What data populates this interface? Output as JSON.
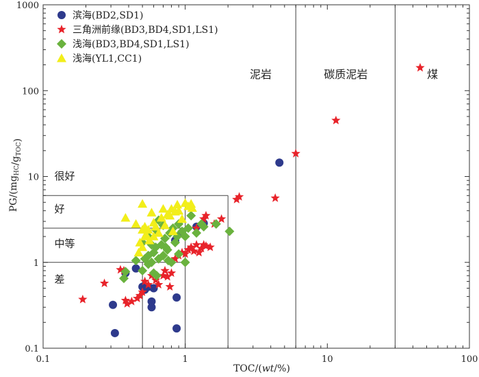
{
  "chart_data": {
    "type": "scatter",
    "x_scale": "log",
    "y_scale": "log",
    "xlim": [
      0.1,
      100
    ],
    "ylim": [
      0.1,
      1000
    ],
    "xlabel": "TOC/(wt/%)",
    "ylabel": "PG/(mg_HC/g_TOC)",
    "x_ticks": [
      "0.1",
      "1",
      "10",
      "100"
    ],
    "y_ticks": [
      "0.1",
      "1",
      "10",
      "100",
      "1000"
    ],
    "legend_position": "top-left",
    "regions": [
      {
        "label": "泥岩"
      },
      {
        "label": "碳质泥岩"
      },
      {
        "label": "煤"
      },
      {
        "label": "很好"
      },
      {
        "label": "好"
      },
      {
        "label": "中等"
      },
      {
        "label": "差"
      }
    ],
    "boundary_lines": {
      "x_verticals_full": [
        6,
        30
      ],
      "x_verticals_partial": [
        0.5,
        1,
        2
      ],
      "y_horizontals": [
        1,
        2.5,
        6
      ]
    },
    "series": [
      {
        "name": "滨海(BD2,SD1)",
        "marker": "circle",
        "color": "#2e3a8c",
        "points": [
          [
            0.31,
            0.32
          ],
          [
            0.32,
            0.15
          ],
          [
            0.38,
            0.75
          ],
          [
            0.45,
            0.85
          ],
          [
            0.5,
            0.52
          ],
          [
            0.52,
            0.48
          ],
          [
            0.55,
            0.52
          ],
          [
            0.58,
            0.35
          ],
          [
            0.58,
            0.3
          ],
          [
            0.6,
            0.5
          ],
          [
            0.87,
            0.39
          ],
          [
            0.87,
            0.17
          ],
          [
            0.85,
            1.8
          ],
          [
            0.95,
            2.2
          ],
          [
            1.2,
            2.6
          ],
          [
            1.35,
            2.85
          ],
          [
            4.6,
            14.5
          ]
        ]
      },
      {
        "name": "三角洲前缘(BD3,BD4,SD1,LS1)",
        "marker": "star",
        "color": "#e8232a",
        "points": [
          [
            0.19,
            0.37
          ],
          [
            0.27,
            0.57
          ],
          [
            0.35,
            0.82
          ],
          [
            0.37,
            0.8
          ],
          [
            0.38,
            0.36
          ],
          [
            0.39,
            0.33
          ],
          [
            0.42,
            0.35
          ],
          [
            0.46,
            0.38
          ],
          [
            0.48,
            0.41
          ],
          [
            0.5,
            0.45
          ],
          [
            0.52,
            0.6
          ],
          [
            0.55,
            0.55
          ],
          [
            0.58,
            0.7
          ],
          [
            0.62,
            0.62
          ],
          [
            0.65,
            0.55
          ],
          [
            0.7,
            0.7
          ],
          [
            0.72,
            0.8
          ],
          [
            0.75,
            0.68
          ],
          [
            0.8,
            0.75
          ],
          [
            0.78,
            0.52
          ],
          [
            0.85,
            1.1
          ],
          [
            0.9,
            1.2
          ],
          [
            0.95,
            1.3
          ],
          [
            1.0,
            1.25
          ],
          [
            1.05,
            1.4
          ],
          [
            1.1,
            1.5
          ],
          [
            1.15,
            1.35
          ],
          [
            1.2,
            1.6
          ],
          [
            1.25,
            1.3
          ],
          [
            1.3,
            1.45
          ],
          [
            1.35,
            1.6
          ],
          [
            1.4,
            1.55
          ],
          [
            1.5,
            1.5
          ],
          [
            1.2,
            2.5
          ],
          [
            1.35,
            3.2
          ],
          [
            1.4,
            3.5
          ],
          [
            1.6,
            2.8
          ],
          [
            1.8,
            3.2
          ],
          [
            2.3,
            5.4
          ],
          [
            2.4,
            5.8
          ],
          [
            4.3,
            5.6
          ],
          [
            6.0,
            18.5
          ],
          [
            11.5,
            45
          ],
          [
            45,
            185
          ]
        ]
      },
      {
        "name": "浅海(BD3,BD4,SD1,LS1)",
        "marker": "diamond",
        "color": "#6ab23e",
        "points": [
          [
            0.37,
            0.65
          ],
          [
            0.38,
            0.78
          ],
          [
            0.45,
            1.05
          ],
          [
            0.5,
            0.8
          ],
          [
            0.52,
            1.1
          ],
          [
            0.55,
            0.95
          ],
          [
            0.55,
            1.2
          ],
          [
            0.58,
            1.0
          ],
          [
            0.6,
            1.3
          ],
          [
            0.6,
            0.75
          ],
          [
            0.62,
            1.5
          ],
          [
            0.65,
            1.1
          ],
          [
            0.68,
            1.6
          ],
          [
            0.7,
            1.2
          ],
          [
            0.72,
            1.9
          ],
          [
            0.75,
            1.4
          ],
          [
            0.78,
            2.2
          ],
          [
            0.8,
            1.0
          ],
          [
            0.82,
            2.5
          ],
          [
            0.85,
            1.7
          ],
          [
            0.88,
            2.0
          ],
          [
            0.9,
            2.8
          ],
          [
            0.95,
            2.3
          ],
          [
            1.0,
            2.0
          ],
          [
            1.0,
            1.0
          ],
          [
            1.05,
            2.5
          ],
          [
            1.1,
            3.5
          ],
          [
            1.2,
            2.2
          ],
          [
            1.3,
            2.8
          ],
          [
            1.35,
            2.6
          ],
          [
            1.65,
            2.8
          ],
          [
            2.05,
            2.3
          ],
          [
            0.5,
            1.7
          ],
          [
            0.55,
            2.0
          ],
          [
            0.62,
            2.4
          ],
          [
            0.65,
            3.1
          ],
          [
            0.7,
            2.7
          ],
          [
            0.73,
            1.5
          ],
          [
            0.76,
            1.05
          ],
          [
            0.9,
            1.25
          ],
          [
            0.63,
            0.7
          ],
          [
            0.58,
            1.6
          ]
        ]
      },
      {
        "name": "浅海(YL1,CC1)",
        "marker": "triangle",
        "color": "#f2ee1a",
        "points": [
          [
            0.38,
            3.3
          ],
          [
            0.45,
            2.8
          ],
          [
            0.48,
            1.7
          ],
          [
            0.5,
            4.8
          ],
          [
            0.5,
            2.4
          ],
          [
            0.52,
            2.6
          ],
          [
            0.53,
            2.1
          ],
          [
            0.55,
            2.4
          ],
          [
            0.56,
            1.8
          ],
          [
            0.58,
            3.8
          ],
          [
            0.6,
            2.9
          ],
          [
            0.62,
            2.6
          ],
          [
            0.65,
            2.2
          ],
          [
            0.68,
            3.3
          ],
          [
            0.7,
            4.2
          ],
          [
            0.72,
            2.7
          ],
          [
            0.75,
            3.6
          ],
          [
            0.78,
            3.5
          ],
          [
            0.8,
            4.2
          ],
          [
            0.82,
            2.3
          ],
          [
            0.85,
            3.9
          ],
          [
            0.88,
            4.7
          ],
          [
            0.9,
            4.0
          ],
          [
            0.95,
            3.2
          ],
          [
            1.0,
            4.9
          ],
          [
            1.05,
            4.5
          ],
          [
            1.1,
            4.8
          ],
          [
            1.12,
            4.3
          ],
          [
            0.5,
            1.5
          ],
          [
            0.52,
            2.0
          ],
          [
            0.47,
            1.3
          ],
          [
            0.6,
            2.0
          ]
        ]
      }
    ]
  }
}
